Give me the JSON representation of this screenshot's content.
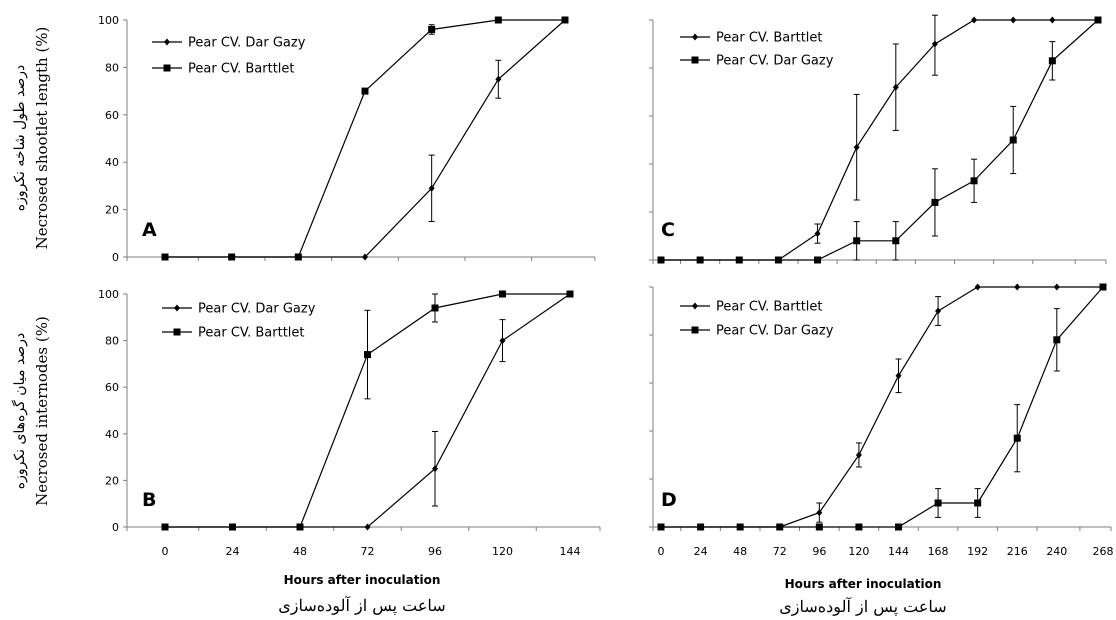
{
  "y_axis_titles": {
    "top_en": "Necrosed shootlet length (%)",
    "top_fa": "درصد طول شاخه نکروزه",
    "bottom_en": "Necrosed internodes (%)",
    "bottom_fa": "درصد میان گره‌های نکروزه"
  },
  "x_axis_titles": {
    "left_en": "Hours after inoculation",
    "left_fa": "ساعت پس از آلوده‌سازی",
    "right_en": "Hours after inoculation",
    "right_fa": "ساعت پس از آلوده‌سازی"
  },
  "colors": {
    "line": "#000000",
    "axis": "#7f7f7f"
  },
  "chart_data": [
    {
      "panel": "A",
      "type": "line",
      "x": [
        0,
        24,
        48,
        72,
        96,
        120,
        144
      ],
      "ylim": [
        0,
        100
      ],
      "yticks": [
        0,
        20,
        40,
        60,
        80,
        100
      ],
      "xlabel": "",
      "ylabel": "Necrosed shootlet length (%)",
      "legend_position": "top-left",
      "series": [
        {
          "name": "Pear CV. Dar Gazy",
          "marker": "diamond",
          "values": [
            0,
            0,
            0,
            0,
            29,
            75,
            100
          ],
          "errors": [
            0,
            0,
            0,
            0,
            14,
            8,
            0
          ]
        },
        {
          "name": "Pear CV. Barttlet",
          "marker": "square",
          "values": [
            0,
            0,
            0,
            70,
            96,
            100,
            100
          ],
          "errors": [
            0,
            0,
            0,
            0,
            2,
            0,
            0
          ]
        }
      ]
    },
    {
      "panel": "B",
      "type": "line",
      "x": [
        0,
        24,
        48,
        72,
        96,
        120,
        144
      ],
      "xticklabels": [
        "0",
        "24",
        "48",
        "72",
        "96",
        "120",
        "144"
      ],
      "ylim": [
        0,
        100
      ],
      "yticks": [
        0,
        20,
        40,
        60,
        80,
        100
      ],
      "xlabel": "Hours after inoculation",
      "ylabel": "Necrosed internodes (%)",
      "legend_position": "top-left",
      "series": [
        {
          "name": "Pear CV. Dar Gazy",
          "marker": "diamond",
          "values": [
            0,
            0,
            0,
            0,
            25,
            80,
            100
          ],
          "errors": [
            0,
            0,
            0,
            0,
            16,
            9,
            0
          ]
        },
        {
          "name": "Pear CV. Barttlet",
          "marker": "square",
          "values": [
            0,
            0,
            0,
            74,
            94,
            100,
            100
          ],
          "errors": [
            0,
            0,
            0,
            19,
            6,
            0,
            0
          ]
        }
      ]
    },
    {
      "panel": "C",
      "type": "line",
      "x": [
        0,
        24,
        48,
        72,
        96,
        120,
        144,
        168,
        192,
        216,
        240,
        268
      ],
      "ylim": [
        0,
        100
      ],
      "legend_position": "top-left",
      "series": [
        {
          "name": "Pear CV. Barttlet",
          "marker": "diamond",
          "values": [
            0,
            0,
            0,
            0,
            11,
            47,
            72,
            90,
            100,
            100,
            100,
            100
          ],
          "errors": [
            0,
            0,
            0,
            0,
            4,
            22,
            18,
            13,
            0,
            0,
            0,
            0
          ]
        },
        {
          "name": "Pear CV. Dar Gazy",
          "marker": "square",
          "values": [
            0,
            0,
            0,
            0,
            0,
            8,
            8,
            24,
            33,
            50,
            83,
            100
          ],
          "errors": [
            0,
            0,
            0,
            0,
            0,
            8,
            8,
            14,
            9,
            14,
            8,
            0
          ]
        }
      ]
    },
    {
      "panel": "D",
      "type": "line",
      "x": [
        0,
        24,
        48,
        72,
        96,
        120,
        144,
        168,
        192,
        216,
        240,
        268
      ],
      "xticklabels": [
        "0",
        "24",
        "48",
        "72",
        "96",
        "120",
        "144",
        "168",
        "192",
        "216",
        "240",
        "268"
      ],
      "ylim": [
        0,
        100
      ],
      "xlabel": "Hours after inoculation",
      "legend_position": "top-left",
      "series": [
        {
          "name": "Pear CV. Barttlet",
          "marker": "diamond",
          "values": [
            0,
            0,
            0,
            0,
            6,
            30,
            63,
            90,
            100,
            100,
            100,
            100
          ],
          "errors": [
            0,
            0,
            0,
            0,
            4,
            5,
            7,
            6,
            0,
            0,
            0,
            0
          ]
        },
        {
          "name": "Pear CV. Dar Gazy",
          "marker": "square",
          "values": [
            0,
            0,
            0,
            0,
            0,
            0,
            0,
            10,
            10,
            37,
            78,
            100
          ],
          "errors": [
            0,
            0,
            0,
            0,
            0,
            0,
            0,
            6,
            6,
            14,
            13,
            0
          ]
        }
      ]
    }
  ]
}
